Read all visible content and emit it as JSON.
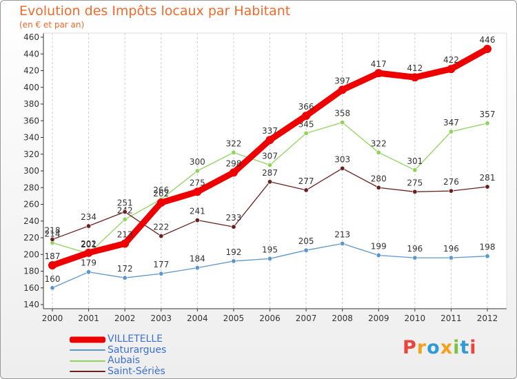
{
  "title": "Evolution des Impôts locaux par Habitant",
  "subtitle": "(en € et par an)",
  "logo": {
    "text": "Proxiti",
    "letters": [
      {
        "ch": "P",
        "color": "#e8453c"
      },
      {
        "ch": "r",
        "color": "#f3a11c"
      },
      {
        "ch": "o",
        "color": "#2e9ad8"
      },
      {
        "ch": "x",
        "color": "#f3a11c"
      },
      {
        "ch": "i",
        "color": "#7cc142"
      },
      {
        "ch": "t",
        "color": "#2e9ad8"
      },
      {
        "ch": "i",
        "color": "#e8453c"
      }
    ]
  },
  "chart_data": {
    "type": "line",
    "title": "Evolution des Impôts locaux par Habitant",
    "subtitle": "(en € et par an)",
    "x": [
      "2000",
      "2001",
      "2002",
      "2003",
      "2004",
      "2005",
      "2006",
      "2007",
      "2008",
      "2009",
      "2010",
      "2011",
      "2012"
    ],
    "ylim": [
      140,
      460
    ],
    "yticks": [
      140,
      160,
      180,
      200,
      220,
      240,
      260,
      280,
      300,
      320,
      340,
      360,
      380,
      400,
      420,
      440,
      460
    ],
    "grid": "vertical-dashed",
    "legend": "bottom-left",
    "series": [
      {
        "name": "VILLETELLE",
        "color": "#ee0000",
        "values": [
          187,
          202,
          213,
          262,
          275,
          298,
          337,
          366,
          397,
          417,
          412,
          422,
          446
        ]
      },
      {
        "name": "Saturargues",
        "color": "#5b97cc",
        "values": [
          160,
          179,
          172,
          177,
          184,
          192,
          195,
          205,
          213,
          199,
          196,
          196,
          198
        ]
      },
      {
        "name": "Aubais",
        "color": "#8ed35a",
        "values": [
          214,
          201,
          242,
          266,
          300,
          322,
          307,
          345,
          358,
          322,
          301,
          347,
          357
        ]
      },
      {
        "name": "Saint-Sériès",
        "color": "#6b1f1f",
        "values": [
          218,
          234,
          251,
          222,
          241,
          233,
          287,
          277,
          303,
          280,
          275,
          276,
          281
        ]
      }
    ]
  }
}
